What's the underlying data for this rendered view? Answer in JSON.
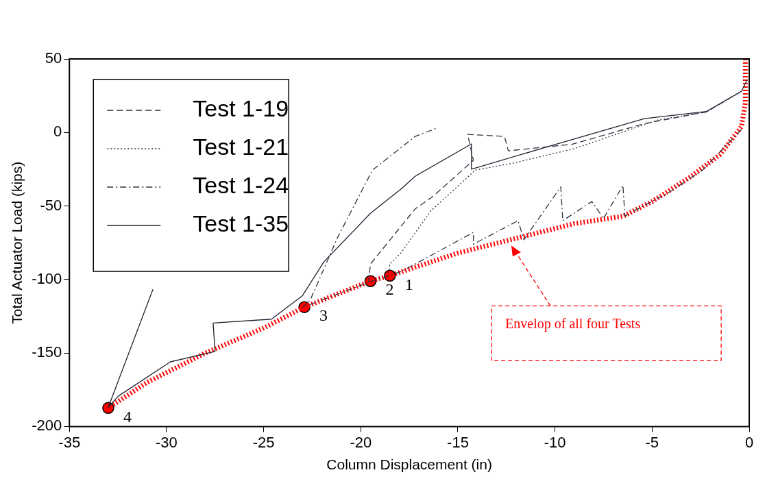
{
  "chart_data": {
    "type": "line",
    "xlabel": "Column Displacement (in)",
    "ylabel": "Total Actuator Load (kips)",
    "xlim": [
      -35,
      0
    ],
    "xticks": [
      -35,
      -30,
      -25,
      -20,
      -15,
      -10,
      -5,
      0
    ],
    "ylim": [
      -200,
      50
    ],
    "yticks": [
      -200,
      -150,
      -100,
      -50,
      0,
      50
    ],
    "grid": false,
    "legend": "top left",
    "series": [
      {
        "name": "Test 1-19",
        "color": "#303040",
        "line_style": "dashed",
        "marker": "none",
        "x": [
          -19.6,
          -19.5,
          -17.2,
          -16.3,
          -14.2,
          -14.5,
          -12.6,
          -12.4,
          -9.1,
          -5.4,
          -2.2,
          -0.4
        ],
        "values": [
          -102,
          -89.5,
          -52,
          -43.7,
          -19,
          -1.3,
          -2.7,
          -12.5,
          -8,
          6,
          14,
          28
        ]
      },
      {
        "name": "Test 1-21",
        "color": "#303040",
        "line_style": "dotted",
        "marker": "none",
        "x": [
          -18.6,
          -18.5,
          -17.9,
          -16.4,
          -14.1,
          -12.2,
          -9,
          -4.7,
          -2.2,
          -0.4
        ],
        "values": [
          -98,
          -89.5,
          -81.5,
          -53.5,
          -25.6,
          -21,
          -11,
          8.5,
          14,
          28
        ]
      },
      {
        "name": "Test 1-24",
        "color": "#303040",
        "line_style": "dashdot",
        "marker": "none",
        "x": [
          -0.4,
          -2.4,
          -4.1,
          -6.4,
          -6.5,
          -7.5,
          -8.1,
          -9.6,
          -9.7,
          -11.6,
          -11.9,
          -14.2,
          -14.2,
          -17.9,
          -19.6,
          -23,
          -22.6,
          -21.2,
          -19.4,
          -17.2,
          -16.1
        ],
        "values": [
          2,
          -25.6,
          -40.5,
          -56.8,
          -36,
          -58.5,
          -47,
          -60,
          -37,
          -73,
          -60,
          -76,
          -68,
          -94.5,
          -102,
          -119,
          -114,
          -71.6,
          -25.7,
          -2.7,
          2.9
        ]
      },
      {
        "name": "Test 1-35",
        "color": "#202030",
        "line_style": "solid",
        "marker": "none",
        "x": [
          -0.1,
          -0.4,
          -2.2,
          -5.4,
          -9.9,
          -14.3,
          -14.3,
          -17.2,
          -17.9,
          -19.5,
          -21.9,
          -23,
          -24.6,
          -27.6,
          -27.5,
          -29.8,
          -32.5,
          -33,
          -30.7
        ],
        "values": [
          36,
          28,
          14.3,
          9.4,
          -7.8,
          -25,
          -7.8,
          -29.8,
          -38.2,
          -55,
          -88,
          -111,
          -127,
          -129.6,
          -149,
          -156,
          -179.5,
          -187,
          -106.7
        ]
      },
      {
        "type": "line",
        "color": "#ff0000",
        "line_style": "dotted",
        "marker": "none",
        "x": [
          -0.2,
          -0.2,
          -0.4,
          -1.5,
          -3,
          -5,
          -6.5,
          -9,
          -12.3,
          -15,
          -18.5,
          -19.5,
          -22.9,
          -25,
          -28,
          -31,
          -33
        ],
        "values": [
          50,
          20,
          4,
          -15,
          -30,
          -47,
          -57,
          -62,
          -73,
          -82,
          -97.4,
          -101.1,
          -118.8,
          -133,
          -150,
          -170,
          -187.4
        ]
      },
      {
        "type": "scatter",
        "color": "#ff0000",
        "marker": "circle",
        "x": [
          -18.5,
          -19.5,
          -22.9,
          -33
        ],
        "values": [
          -97.4,
          -101.1,
          -118.8,
          -187.4
        ]
      }
    ],
    "annotations": [
      {
        "text": "1",
        "x": -18.5,
        "y": -97.4
      },
      {
        "text": "2",
        "x": -19.5,
        "y": -101.1
      },
      {
        "text": "3",
        "x": -22.9,
        "y": -118.8
      },
      {
        "text": "4",
        "x": -33,
        "y": -187.4
      },
      "Envelop of all four Tests"
    ]
  }
}
